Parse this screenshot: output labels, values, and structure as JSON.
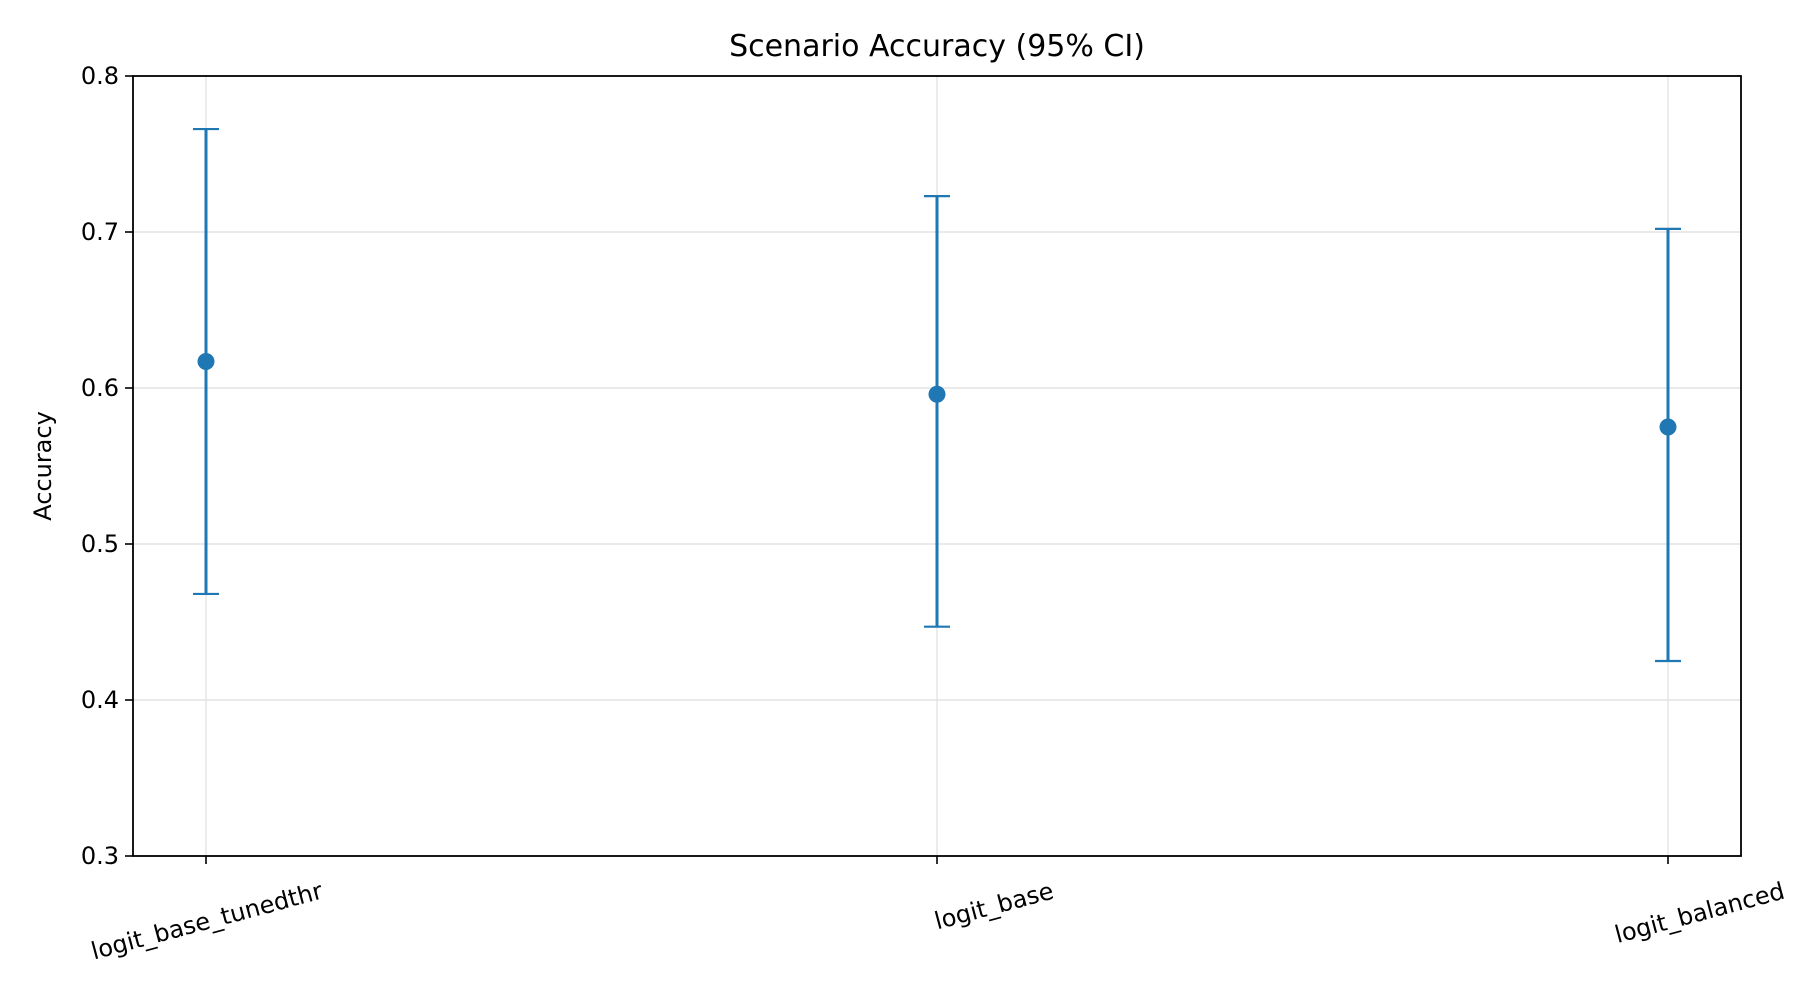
{
  "chart_data": {
    "type": "scatter",
    "title": "Scenario Accuracy (95% CI)",
    "xlabel": "",
    "ylabel": "Accuracy",
    "categories": [
      "logit_base_tunedthr",
      "logit_base",
      "logit_balanced"
    ],
    "series": [
      {
        "values": [
          0.617,
          0.596,
          0.575
        ],
        "ci_lower": [
          0.468,
          0.447,
          0.425
        ],
        "ci_upper": [
          0.766,
          0.723,
          0.702
        ]
      }
    ],
    "ylim": [
      0.3,
      0.8
    ],
    "yticks": [
      "0.3",
      "0.4",
      "0.5",
      "0.6",
      "0.7",
      "0.8"
    ],
    "grid": true,
    "color": "#1f77b4"
  }
}
